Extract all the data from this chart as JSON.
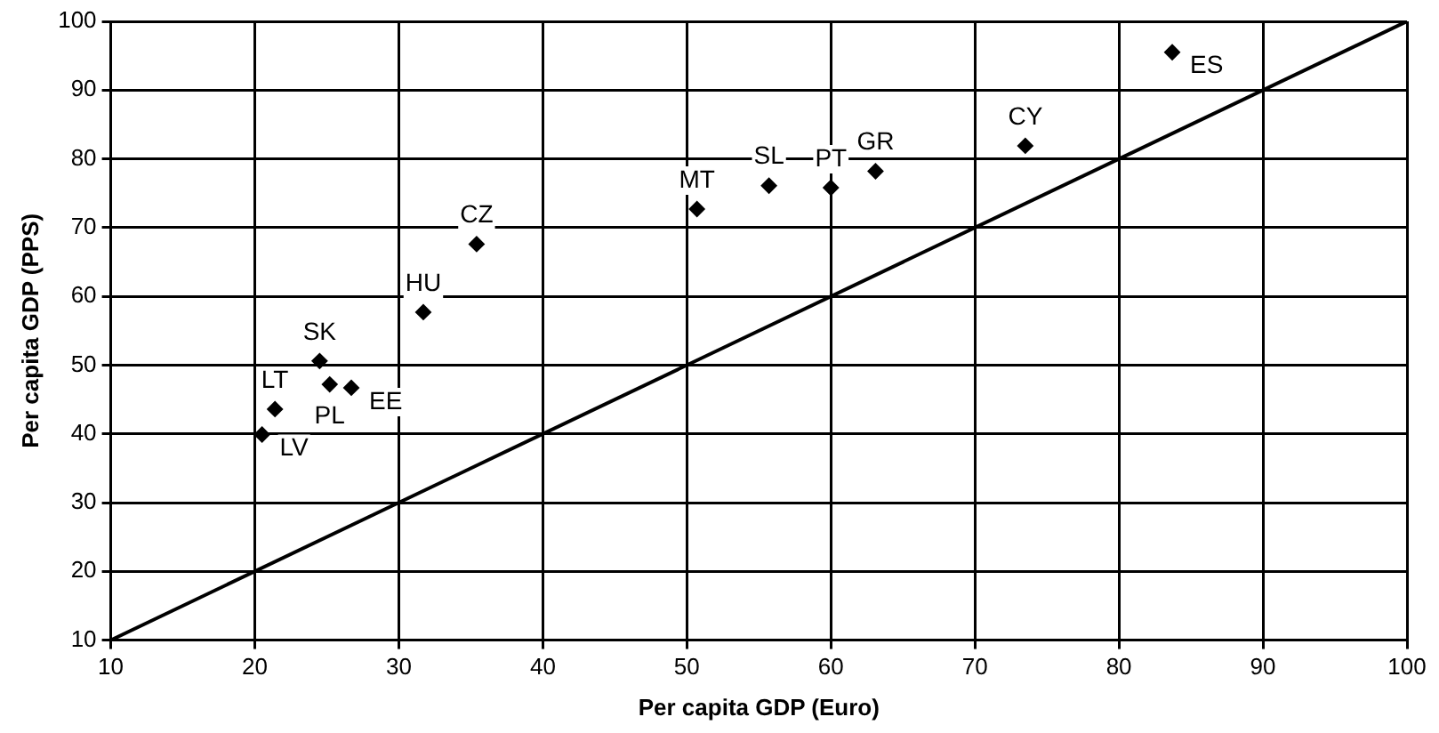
{
  "chart_data": {
    "type": "scatter",
    "xlabel": "Per capita GDP (Euro)",
    "ylabel": "Per capita GDP (PPS)",
    "xlim": [
      10,
      100
    ],
    "xticks": [
      10,
      20,
      30,
      40,
      50,
      60,
      70,
      80,
      90,
      100
    ],
    "ylim": [
      10,
      100
    ],
    "yticks": [
      10,
      20,
      30,
      40,
      50,
      60,
      70,
      80,
      90,
      100
    ],
    "grid": true,
    "legend": false,
    "marker": "diamond",
    "series": [
      {
        "color": "#000000",
        "x": [
          35.4,
          31.7,
          24.5,
          25.2,
          26.7,
          21.4,
          20.5,
          50.7,
          55.7,
          60.0,
          63.1,
          73.5,
          83.7
        ],
        "values": [
          67.6,
          57.7,
          50.6,
          47.2,
          46.7,
          43.6,
          39.9,
          72.7,
          76.1,
          75.8,
          78.2,
          81.9,
          95.5
        ],
        "value_labels": [
          "CZ",
          "HU",
          "SK",
          "PL",
          "EE",
          "LT",
          "LV",
          "MT",
          "SL",
          "PT",
          "GR",
          "CY",
          "ES"
        ]
      },
      {
        "type": "line",
        "color": "#000000",
        "x": [
          10,
          100
        ],
        "values": [
          10,
          100
        ],
        "marker": "none"
      }
    ]
  }
}
